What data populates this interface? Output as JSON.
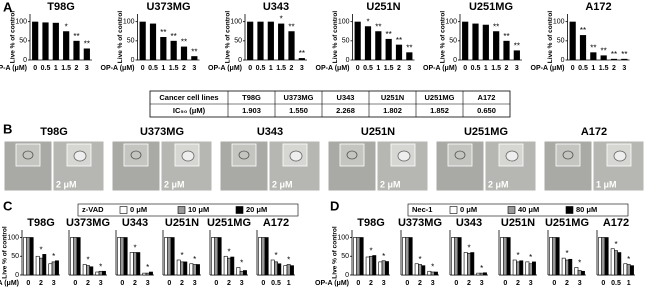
{
  "panel_labels": [
    "A",
    "B",
    "C",
    "D"
  ],
  "chart_data": [
    {
      "type": "bar",
      "title": "T98G",
      "ylabel": "Live % of control",
      "xlabel": "OP-A (μM)",
      "categories": [
        "0",
        "0.5",
        "1",
        "1.5",
        "2",
        "3"
      ],
      "values": [
        100,
        98,
        97,
        75,
        50,
        30
      ],
      "significance": [
        null,
        null,
        null,
        "*",
        "**",
        "**"
      ],
      "color": "#000000",
      "ylim": [
        0,
        120
      ],
      "yticks": [
        0,
        50,
        100
      ]
    },
    {
      "type": "bar",
      "title": "U373MG",
      "ylabel": "Live % of control",
      "xlabel": "OP-A (μM)",
      "categories": [
        "0",
        "0.5",
        "1",
        "1.5",
        "2",
        "3"
      ],
      "values": [
        100,
        95,
        60,
        50,
        35,
        10
      ],
      "significance": [
        null,
        null,
        "**",
        "**",
        "**",
        "**"
      ],
      "color": "#000000",
      "ylim": [
        0,
        120
      ],
      "yticks": [
        0,
        50,
        100
      ]
    },
    {
      "type": "bar",
      "title": "U343",
      "ylabel": "Live % of control",
      "xlabel": "OP-A (μM)",
      "categories": [
        "0",
        "0.5",
        "1",
        "1.5",
        "2",
        "3"
      ],
      "values": [
        100,
        100,
        100,
        95,
        75,
        5
      ],
      "significance": [
        null,
        null,
        null,
        "*",
        "**",
        "**"
      ],
      "color": "#000000",
      "ylim": [
        0,
        120
      ],
      "yticks": [
        0,
        50,
        100
      ]
    },
    {
      "type": "bar",
      "title": "U251N",
      "ylabel": "Live % of control",
      "xlabel": "OP-A (μM)",
      "categories": [
        "0",
        "0.5",
        "1",
        "1.5",
        "2",
        "3"
      ],
      "values": [
        100,
        88,
        75,
        55,
        40,
        20
      ],
      "significance": [
        null,
        "*",
        "**",
        "**",
        "**",
        "**"
      ],
      "color": "#000000",
      "ylim": [
        0,
        120
      ],
      "yticks": [
        0,
        50,
        100
      ]
    },
    {
      "type": "bar",
      "title": "U251MG",
      "ylabel": "Live % of control",
      "xlabel": "OP-A (μM)",
      "categories": [
        "0",
        "0.5",
        "1",
        "1.5",
        "2",
        "3"
      ],
      "values": [
        100,
        95,
        92,
        75,
        50,
        25
      ],
      "significance": [
        null,
        null,
        null,
        "**",
        "**",
        "**"
      ],
      "color": "#000000",
      "ylim": [
        0,
        120
      ],
      "yticks": [
        0,
        50,
        100
      ]
    },
    {
      "type": "bar",
      "title": "A172",
      "ylabel": "Live % of control",
      "xlabel": "OP-A (μM)",
      "categories": [
        "0",
        "0.5",
        "1",
        "1.5",
        "2",
        "3"
      ],
      "values": [
        100,
        65,
        20,
        12,
        3,
        3
      ],
      "significance": [
        null,
        "**",
        "**",
        "**",
        "**",
        "**"
      ],
      "color": "#000000",
      "ylim": [
        0,
        120
      ],
      "yticks": [
        0,
        50,
        100
      ]
    },
    {
      "type": "grouped-bar",
      "title": "T98G",
      "legend_title": "z-VAD",
      "ylabel": "Live % of control",
      "xlabel": "OP-A (μM)",
      "categories": [
        "0",
        "2",
        "3"
      ],
      "series": [
        {
          "name": "0 μM",
          "color": "#ffffff",
          "values": [
            100,
            50,
            30
          ]
        },
        {
          "name": "10 μM",
          "color": "#999999",
          "values": [
            100,
            45,
            35
          ]
        },
        {
          "name": "20 μM",
          "color": "#000000",
          "values": [
            100,
            55,
            38
          ]
        }
      ],
      "significance": [
        null,
        "*",
        "*"
      ],
      "ylim": [
        0,
        120
      ],
      "yticks": [
        0,
        50,
        100
      ]
    },
    {
      "type": "grouped-bar",
      "title": "U373MG",
      "categories": [
        "0",
        "2",
        "3"
      ],
      "series": [
        {
          "name": "0 μM",
          "color": "#ffffff",
          "values": [
            100,
            28,
            8
          ]
        },
        {
          "name": "10 μM",
          "color": "#999999",
          "values": [
            100,
            25,
            10
          ]
        },
        {
          "name": "20 μM",
          "color": "#000000",
          "values": [
            100,
            22,
            10
          ]
        }
      ],
      "significance": [
        null,
        "*",
        "*"
      ],
      "ylim": [
        0,
        120
      ]
    },
    {
      "type": "grouped-bar",
      "title": "U343",
      "categories": [
        "0",
        "2",
        "3"
      ],
      "series": [
        {
          "name": "0 μM",
          "color": "#ffffff",
          "values": [
            100,
            60,
            5
          ]
        },
        {
          "name": "10 μM",
          "color": "#999999",
          "values": [
            100,
            60,
            5
          ]
        },
        {
          "name": "20 μM",
          "color": "#000000",
          "values": [
            100,
            60,
            8
          ]
        }
      ],
      "significance": [
        null,
        "*",
        "*"
      ],
      "ylim": [
        0,
        120
      ]
    },
    {
      "type": "grouped-bar",
      "title": "U251N",
      "categories": [
        "0",
        "2",
        "3"
      ],
      "series": [
        {
          "name": "0 μM",
          "color": "#ffffff",
          "values": [
            100,
            40,
            30
          ]
        },
        {
          "name": "10 μM",
          "color": "#999999",
          "values": [
            100,
            35,
            28
          ]
        },
        {
          "name": "20 μM",
          "color": "#000000",
          "values": [
            100,
            35,
            28
          ]
        }
      ],
      "significance": [
        null,
        "*",
        "*"
      ],
      "ylim": [
        0,
        120
      ]
    },
    {
      "type": "grouped-bar",
      "title": "U251MG",
      "categories": [
        "0",
        "2",
        "3"
      ],
      "series": [
        {
          "name": "0 μM",
          "color": "#ffffff",
          "values": [
            100,
            50,
            20
          ]
        },
        {
          "name": "10 μM",
          "color": "#999999",
          "values": [
            100,
            45,
            10
          ]
        },
        {
          "name": "20 μM",
          "color": "#000000",
          "values": [
            100,
            48,
            12
          ]
        }
      ],
      "significance": [
        null,
        "*",
        "*"
      ],
      "ylim": [
        0,
        120
      ]
    },
    {
      "type": "grouped-bar",
      "title": "A172",
      "categories": [
        "0",
        "0.5",
        "1"
      ],
      "series": [
        {
          "name": "0 μM",
          "color": "#ffffff",
          "values": [
            100,
            40,
            25
          ]
        },
        {
          "name": "10 μM",
          "color": "#999999",
          "values": [
            100,
            35,
            28
          ]
        },
        {
          "name": "20 μM",
          "color": "#000000",
          "values": [
            100,
            30,
            25
          ]
        }
      ],
      "significance": [
        null,
        "*",
        "*"
      ],
      "ylim": [
        0,
        120
      ]
    },
    {
      "type": "grouped-bar",
      "title": "T98G",
      "legend_title": "Nec-1",
      "ylabel": "Live % of control",
      "xlabel": "OP-A (μM)",
      "categories": [
        "0",
        "2",
        "3"
      ],
      "series": [
        {
          "name": "0 μM",
          "color": "#ffffff",
          "values": [
            100,
            48,
            35
          ]
        },
        {
          "name": "40 μM",
          "color": "#999999",
          "values": [
            100,
            50,
            38
          ]
        },
        {
          "name": "80 μM",
          "color": "#000000",
          "values": [
            100,
            52,
            36
          ]
        }
      ],
      "significance": [
        null,
        "*",
        "*"
      ],
      "ylim": [
        0,
        120
      ],
      "yticks": [
        0,
        50,
        100
      ]
    },
    {
      "type": "grouped-bar",
      "title": "U373MG",
      "categories": [
        "0",
        "2",
        "3"
      ],
      "series": [
        {
          "name": "0 μM",
          "color": "#ffffff",
          "values": [
            100,
            30,
            10
          ]
        },
        {
          "name": "40 μM",
          "color": "#999999",
          "values": [
            100,
            28,
            8
          ]
        },
        {
          "name": "80 μM",
          "color": "#000000",
          "values": [
            100,
            25,
            8
          ]
        }
      ],
      "significance": [
        null,
        "*",
        "*"
      ],
      "ylim": [
        0,
        120
      ]
    },
    {
      "type": "grouped-bar",
      "title": "U343",
      "categories": [
        "0",
        "2",
        "3"
      ],
      "series": [
        {
          "name": "0 μM",
          "color": "#ffffff",
          "values": [
            100,
            60,
            5
          ]
        },
        {
          "name": "40 μM",
          "color": "#999999",
          "values": [
            100,
            58,
            5
          ]
        },
        {
          "name": "80 μM",
          "color": "#000000",
          "values": [
            100,
            60,
            6
          ]
        }
      ],
      "significance": [
        null,
        "*",
        "*"
      ],
      "ylim": [
        0,
        120
      ]
    },
    {
      "type": "grouped-bar",
      "title": "U251N",
      "categories": [
        "0",
        "2",
        "3"
      ],
      "series": [
        {
          "name": "0 μM",
          "color": "#ffffff",
          "values": [
            100,
            40,
            35
          ]
        },
        {
          "name": "40 μM",
          "color": "#999999",
          "values": [
            100,
            35,
            30
          ]
        },
        {
          "name": "80 μM",
          "color": "#000000",
          "values": [
            100,
            38,
            35
          ]
        }
      ],
      "significance": [
        null,
        "*",
        "*"
      ],
      "ylim": [
        0,
        120
      ]
    },
    {
      "type": "grouped-bar",
      "title": "U251MG",
      "categories": [
        "0",
        "2",
        "3"
      ],
      "series": [
        {
          "name": "0 μM",
          "color": "#ffffff",
          "values": [
            100,
            45,
            20
          ]
        },
        {
          "name": "40 μM",
          "color": "#999999",
          "values": [
            100,
            40,
            12
          ]
        },
        {
          "name": "80 μM",
          "color": "#000000",
          "values": [
            100,
            42,
            10
          ]
        }
      ],
      "significance": [
        null,
        "*",
        "*"
      ],
      "ylim": [
        0,
        120
      ]
    },
    {
      "type": "grouped-bar",
      "title": "A172",
      "categories": [
        "0",
        "0.5",
        "1"
      ],
      "series": [
        {
          "name": "0 μM",
          "color": "#ffffff",
          "values": [
            100,
            70,
            30
          ]
        },
        {
          "name": "40 μM",
          "color": "#999999",
          "values": [
            100,
            65,
            28
          ]
        },
        {
          "name": "80 μM",
          "color": "#000000",
          "values": [
            100,
            60,
            25
          ]
        }
      ],
      "significance": [
        null,
        "*",
        "*"
      ],
      "ylim": [
        0,
        120
      ]
    }
  ],
  "table": {
    "rows": [
      [
        "Cancer  cell lines",
        "T98G",
        "U373MG",
        "U343",
        "U251N",
        "U251MG",
        "A172"
      ],
      [
        "IC₅₀ (μM)",
        "1.903",
        "1.550",
        "2.268",
        "1.802",
        "1.852",
        "0.650"
      ]
    ]
  },
  "images": [
    {
      "title": "T98G",
      "label": "2 μM"
    },
    {
      "title": "U373MG",
      "label": "2 μM"
    },
    {
      "title": "U343",
      "label": "2 μM"
    },
    {
      "title": "U251N",
      "label": "2 μM"
    },
    {
      "title": "U251MG",
      "label": "2 μM"
    },
    {
      "title": "A172",
      "label": "1 μM"
    }
  ]
}
